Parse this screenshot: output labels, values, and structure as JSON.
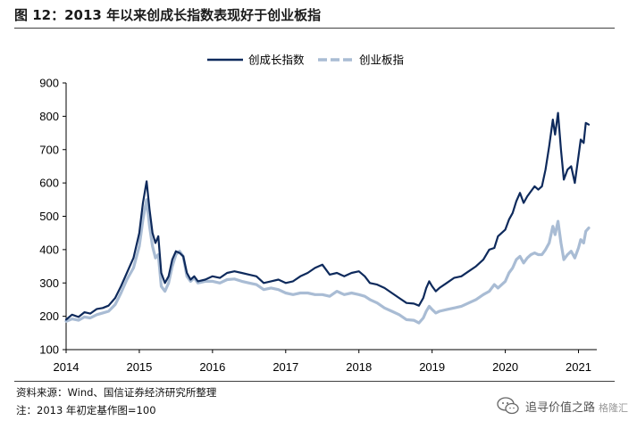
{
  "figure": {
    "title": "图 12：2013 年以来创成长指数表现好于创业板指",
    "source": "资料来源：Wind、国信证券经济研究所整理",
    "note": "注：2013 年初定基作图=100"
  },
  "watermark": {
    "text": "追寻价值之路",
    "sub": "格隆汇",
    "icon": "wechat-icon"
  },
  "colors": {
    "series_1": "#0e2a5c",
    "series_2": "#a9bcd4"
  },
  "chart_data": {
    "type": "line",
    "title": "",
    "xlabel": "",
    "ylabel": "",
    "ylim": [
      100,
      900
    ],
    "yticks": [
      100,
      200,
      300,
      400,
      500,
      600,
      700,
      800,
      900
    ],
    "xlim": [
      2014,
      2021.25
    ],
    "xticks": [
      "2014",
      "2015",
      "2016",
      "2017",
      "2018",
      "2019",
      "2020",
      "2021"
    ],
    "grid": false,
    "legend": "top-center",
    "series": [
      {
        "name": "创成长指数",
        "style": "solid",
        "points": [
          [
            2014.0,
            190
          ],
          [
            2014.08,
            205
          ],
          [
            2014.17,
            198
          ],
          [
            2014.25,
            212
          ],
          [
            2014.33,
            208
          ],
          [
            2014.42,
            222
          ],
          [
            2014.5,
            225
          ],
          [
            2014.58,
            232
          ],
          [
            2014.67,
            255
          ],
          [
            2014.75,
            290
          ],
          [
            2014.83,
            330
          ],
          [
            2014.92,
            375
          ],
          [
            2015.0,
            450
          ],
          [
            2015.05,
            540
          ],
          [
            2015.1,
            605
          ],
          [
            2015.14,
            520
          ],
          [
            2015.18,
            450
          ],
          [
            2015.22,
            420
          ],
          [
            2015.26,
            440
          ],
          [
            2015.3,
            330
          ],
          [
            2015.35,
            300
          ],
          [
            2015.4,
            320
          ],
          [
            2015.45,
            370
          ],
          [
            2015.5,
            395
          ],
          [
            2015.55,
            390
          ],
          [
            2015.6,
            380
          ],
          [
            2015.65,
            330
          ],
          [
            2015.7,
            310
          ],
          [
            2015.75,
            320
          ],
          [
            2015.8,
            305
          ],
          [
            2015.9,
            310
          ],
          [
            2016.0,
            320
          ],
          [
            2016.1,
            315
          ],
          [
            2016.2,
            330
          ],
          [
            2016.3,
            335
          ],
          [
            2016.4,
            330
          ],
          [
            2016.5,
            325
          ],
          [
            2016.6,
            320
          ],
          [
            2016.7,
            300
          ],
          [
            2016.8,
            305
          ],
          [
            2016.9,
            310
          ],
          [
            2017.0,
            300
          ],
          [
            2017.1,
            305
          ],
          [
            2017.2,
            320
          ],
          [
            2017.3,
            330
          ],
          [
            2017.4,
            345
          ],
          [
            2017.5,
            355
          ],
          [
            2017.55,
            340
          ],
          [
            2017.6,
            325
          ],
          [
            2017.7,
            330
          ],
          [
            2017.8,
            320
          ],
          [
            2017.9,
            330
          ],
          [
            2018.0,
            335
          ],
          [
            2018.08,
            320
          ],
          [
            2018.15,
            300
          ],
          [
            2018.25,
            295
          ],
          [
            2018.35,
            285
          ],
          [
            2018.45,
            270
          ],
          [
            2018.55,
            255
          ],
          [
            2018.65,
            240
          ],
          [
            2018.75,
            238
          ],
          [
            2018.82,
            232
          ],
          [
            2018.88,
            255
          ],
          [
            2018.92,
            285
          ],
          [
            2018.96,
            305
          ],
          [
            2019.0,
            290
          ],
          [
            2019.05,
            275
          ],
          [
            2019.1,
            285
          ],
          [
            2019.2,
            300
          ],
          [
            2019.3,
            315
          ],
          [
            2019.4,
            320
          ],
          [
            2019.5,
            335
          ],
          [
            2019.6,
            350
          ],
          [
            2019.7,
            370
          ],
          [
            2019.78,
            400
          ],
          [
            2019.85,
            405
          ],
          [
            2019.9,
            440
          ],
          [
            2020.0,
            460
          ],
          [
            2020.05,
            490
          ],
          [
            2020.1,
            510
          ],
          [
            2020.15,
            545
          ],
          [
            2020.2,
            570
          ],
          [
            2020.25,
            540
          ],
          [
            2020.3,
            560
          ],
          [
            2020.35,
            575
          ],
          [
            2020.4,
            590
          ],
          [
            2020.45,
            580
          ],
          [
            2020.5,
            590
          ],
          [
            2020.55,
            640
          ],
          [
            2020.6,
            710
          ],
          [
            2020.65,
            790
          ],
          [
            2020.68,
            745
          ],
          [
            2020.72,
            810
          ],
          [
            2020.76,
            700
          ],
          [
            2020.8,
            610
          ],
          [
            2020.85,
            640
          ],
          [
            2020.9,
            650
          ],
          [
            2020.95,
            600
          ],
          [
            2021.0,
            680
          ],
          [
            2021.03,
            730
          ],
          [
            2021.07,
            720
          ],
          [
            2021.1,
            780
          ],
          [
            2021.14,
            775
          ]
        ]
      },
      {
        "name": "创业板指",
        "style": "dashed",
        "points": [
          [
            2014.0,
            185
          ],
          [
            2014.08,
            192
          ],
          [
            2014.17,
            188
          ],
          [
            2014.25,
            198
          ],
          [
            2014.33,
            195
          ],
          [
            2014.42,
            205
          ],
          [
            2014.5,
            210
          ],
          [
            2014.58,
            215
          ],
          [
            2014.67,
            235
          ],
          [
            2014.75,
            270
          ],
          [
            2014.83,
            310
          ],
          [
            2014.92,
            345
          ],
          [
            2015.0,
            410
          ],
          [
            2015.05,
            490
          ],
          [
            2015.1,
            550
          ],
          [
            2015.14,
            470
          ],
          [
            2015.18,
            410
          ],
          [
            2015.22,
            375
          ],
          [
            2015.26,
            385
          ],
          [
            2015.3,
            290
          ],
          [
            2015.35,
            275
          ],
          [
            2015.4,
            300
          ],
          [
            2015.45,
            350
          ],
          [
            2015.5,
            385
          ],
          [
            2015.55,
            395
          ],
          [
            2015.6,
            380
          ],
          [
            2015.65,
            320
          ],
          [
            2015.7,
            305
          ],
          [
            2015.75,
            315
          ],
          [
            2015.8,
            300
          ],
          [
            2015.9,
            305
          ],
          [
            2016.0,
            305
          ],
          [
            2016.1,
            300
          ],
          [
            2016.2,
            310
          ],
          [
            2016.3,
            312
          ],
          [
            2016.4,
            305
          ],
          [
            2016.5,
            300
          ],
          [
            2016.6,
            295
          ],
          [
            2016.7,
            280
          ],
          [
            2016.8,
            285
          ],
          [
            2016.9,
            280
          ],
          [
            2017.0,
            270
          ],
          [
            2017.1,
            265
          ],
          [
            2017.2,
            270
          ],
          [
            2017.3,
            270
          ],
          [
            2017.4,
            265
          ],
          [
            2017.5,
            265
          ],
          [
            2017.6,
            260
          ],
          [
            2017.7,
            275
          ],
          [
            2017.8,
            265
          ],
          [
            2017.9,
            270
          ],
          [
            2018.0,
            265
          ],
          [
            2018.08,
            260
          ],
          [
            2018.15,
            250
          ],
          [
            2018.25,
            240
          ],
          [
            2018.35,
            225
          ],
          [
            2018.45,
            215
          ],
          [
            2018.55,
            205
          ],
          [
            2018.65,
            190
          ],
          [
            2018.75,
            188
          ],
          [
            2018.82,
            180
          ],
          [
            2018.88,
            195
          ],
          [
            2018.92,
            215
          ],
          [
            2018.96,
            230
          ],
          [
            2019.0,
            220
          ],
          [
            2019.05,
            210
          ],
          [
            2019.1,
            215
          ],
          [
            2019.2,
            220
          ],
          [
            2019.3,
            225
          ],
          [
            2019.4,
            230
          ],
          [
            2019.5,
            240
          ],
          [
            2019.6,
            250
          ],
          [
            2019.7,
            265
          ],
          [
            2019.78,
            275
          ],
          [
            2019.85,
            295
          ],
          [
            2019.9,
            285
          ],
          [
            2020.0,
            305
          ],
          [
            2020.05,
            330
          ],
          [
            2020.1,
            345
          ],
          [
            2020.15,
            370
          ],
          [
            2020.2,
            380
          ],
          [
            2020.25,
            360
          ],
          [
            2020.3,
            375
          ],
          [
            2020.35,
            385
          ],
          [
            2020.4,
            390
          ],
          [
            2020.45,
            385
          ],
          [
            2020.5,
            385
          ],
          [
            2020.55,
            400
          ],
          [
            2020.6,
            420
          ],
          [
            2020.65,
            470
          ],
          [
            2020.68,
            445
          ],
          [
            2020.72,
            485
          ],
          [
            2020.76,
            420
          ],
          [
            2020.8,
            370
          ],
          [
            2020.85,
            385
          ],
          [
            2020.9,
            395
          ],
          [
            2020.95,
            375
          ],
          [
            2021.0,
            405
          ],
          [
            2021.03,
            430
          ],
          [
            2021.07,
            420
          ],
          [
            2021.1,
            455
          ],
          [
            2021.14,
            465
          ]
        ]
      }
    ]
  }
}
